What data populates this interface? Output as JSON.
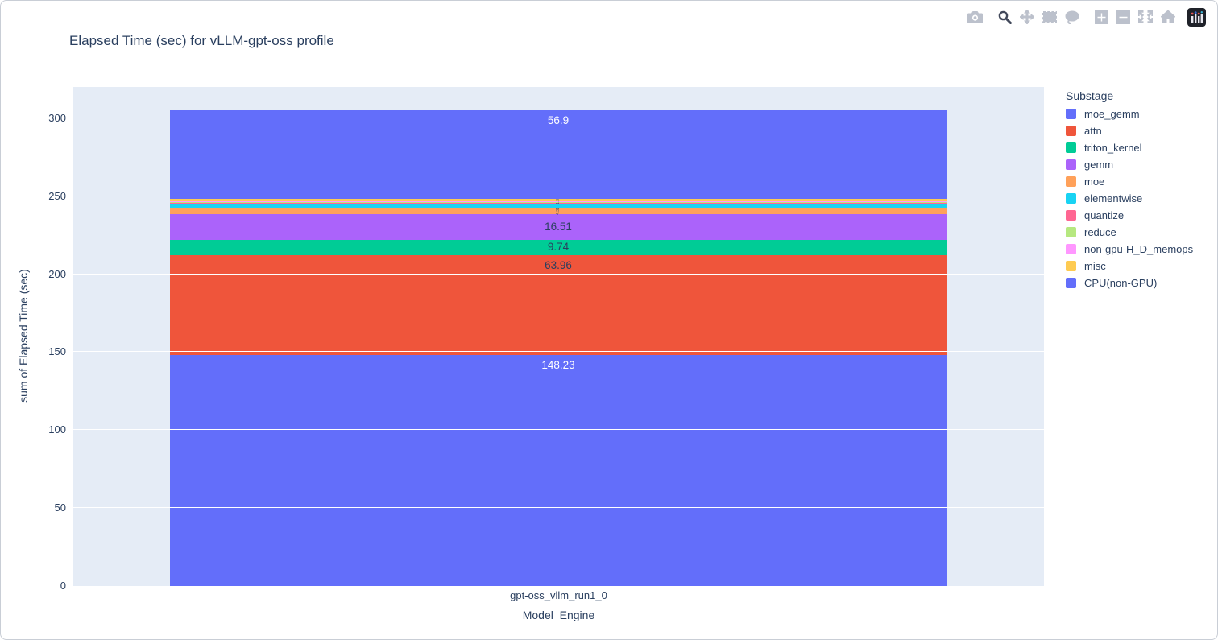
{
  "title": "Elapsed Time (sec) for vLLM-gpt-oss profile",
  "modebar": {
    "buttons": [
      {
        "id": "camera",
        "name": "download-plot-camera",
        "group": 0,
        "active": false
      },
      {
        "id": "zoom",
        "name": "zoom",
        "group": 1,
        "active": true
      },
      {
        "id": "pan",
        "name": "pan",
        "group": 1,
        "active": false
      },
      {
        "id": "box-select",
        "name": "box-select",
        "group": 1,
        "active": false
      },
      {
        "id": "lasso",
        "name": "lasso-select",
        "group": 1,
        "active": false
      },
      {
        "id": "zoom-in",
        "name": "zoom-in",
        "group": 2,
        "active": false
      },
      {
        "id": "zoom-out",
        "name": "zoom-out",
        "group": 2,
        "active": false
      },
      {
        "id": "autoscale",
        "name": "autoscale",
        "group": 2,
        "active": false
      },
      {
        "id": "home",
        "name": "reset-axes-home",
        "group": 2,
        "active": false
      },
      {
        "id": "logo",
        "name": "plotly-logo",
        "group": 3,
        "active": false
      }
    ]
  },
  "legend": {
    "title": "Substage"
  },
  "axes": {
    "x_title": "Model_Engine",
    "x_tick": "gpt-oss_vllm_run1_0",
    "y_title": "sum of Elapsed Time (sec)"
  },
  "colors": {
    "plot_bg": "#e5ecf6",
    "paper_bg": "#ffffff",
    "font": "#2a3f5f",
    "grid": "#ffffff"
  },
  "chart_data": {
    "type": "bar",
    "stacked": true,
    "title": "Elapsed Time (sec) for vLLM-gpt-oss profile",
    "categories": [
      "gpt-oss_vllm_run1_0"
    ],
    "xlabel": "Model_Engine",
    "ylabel": "sum of Elapsed Time (sec)",
    "ylim": [
      0,
      320
    ],
    "yticks": [
      0,
      50,
      100,
      150,
      200,
      250,
      300
    ],
    "grid": true,
    "legend_title": "Substage",
    "legend_position": "right",
    "stack_order": "bottom-to-top follows series order",
    "estimation_note": "values for segments without readable labels estimated from pixel heights",
    "series": [
      {
        "name": "moe_gemm",
        "color": "#636EFA",
        "values": [
          148.23
        ],
        "label": "148.23",
        "label_style": "white"
      },
      {
        "name": "attn",
        "color": "#EF553B",
        "values": [
          63.96
        ],
        "label": "63.96",
        "label_style": "dark"
      },
      {
        "name": "triton_kernel",
        "color": "#00CC96",
        "values": [
          9.74
        ],
        "label": "9.74",
        "label_style": "dark"
      },
      {
        "name": "gemm",
        "color": "#AB63FA",
        "values": [
          16.51
        ],
        "label": "16.51",
        "label_style": "dark"
      },
      {
        "name": "moe",
        "color": "#FFA15A",
        "values": [
          4.31
        ],
        "label": "4.31",
        "label_style": "tiny"
      },
      {
        "name": "elementwise",
        "color": "#19D3F3",
        "values": [
          2.38
        ],
        "label": "",
        "label_style": "none"
      },
      {
        "name": "quantize",
        "color": "#FF6692",
        "values": [
          0.66
        ],
        "label": "",
        "label_style": "none"
      },
      {
        "name": "reduce",
        "color": "#B6E880",
        "values": [
          0.44
        ],
        "label": "",
        "label_style": "none"
      },
      {
        "name": "non-gpu-H_D_memops",
        "color": "#FF97FF",
        "values": [
          0.65
        ],
        "label": "",
        "label_style": "none"
      },
      {
        "name": "misc",
        "color": "#FECB52",
        "values": [
          1.32
        ],
        "label": "1.32",
        "label_style": "tiny"
      },
      {
        "name": "CPU(non-GPU)",
        "color": "#636EFA",
        "values": [
          56.9
        ],
        "label": "56.9",
        "label_style": "white"
      }
    ]
  }
}
